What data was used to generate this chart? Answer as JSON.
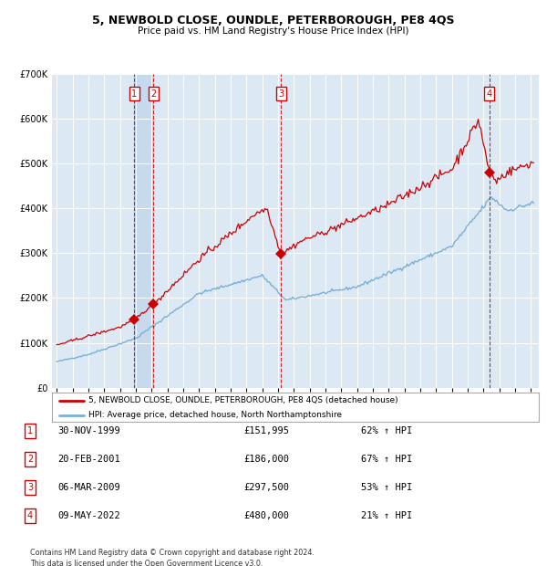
{
  "title": "5, NEWBOLD CLOSE, OUNDLE, PETERBOROUGH, PE8 4QS",
  "subtitle": "Price paid vs. HM Land Registry's House Price Index (HPI)",
  "bg_color": "#dce9f5",
  "grid_color": "#ffffff",
  "sale_line_color": "#cc0000",
  "hpi_line_color": "#7ab0d4",
  "sale_label": "5, NEWBOLD CLOSE, OUNDLE, PETERBOROUGH, PE8 4QS (detached house)",
  "hpi_label": "HPI: Average price, detached house, North Northamptonshire",
  "sales": [
    {
      "num": 1,
      "date": "30-NOV-1999",
      "price": 151995,
      "pct": "62% ↑ HPI",
      "year": 1999.917
    },
    {
      "num": 2,
      "date": "20-FEB-2001",
      "price": 186000,
      "pct": "67% ↑ HPI",
      "year": 2001.13
    },
    {
      "num": 3,
      "date": "06-MAR-2009",
      "price": 297500,
      "pct": "53% ↑ HPI",
      "year": 2009.18
    },
    {
      "num": 4,
      "date": "09-MAY-2022",
      "price": 480000,
      "pct": "21% ↑ HPI",
      "year": 2022.36
    }
  ],
  "ylim": [
    0,
    700000
  ],
  "xlim_start": 1994.7,
  "xlim_end": 2025.5,
  "footer": "Contains HM Land Registry data © Crown copyright and database right 2024.\nThis data is licensed under the Open Government Licence v3.0."
}
